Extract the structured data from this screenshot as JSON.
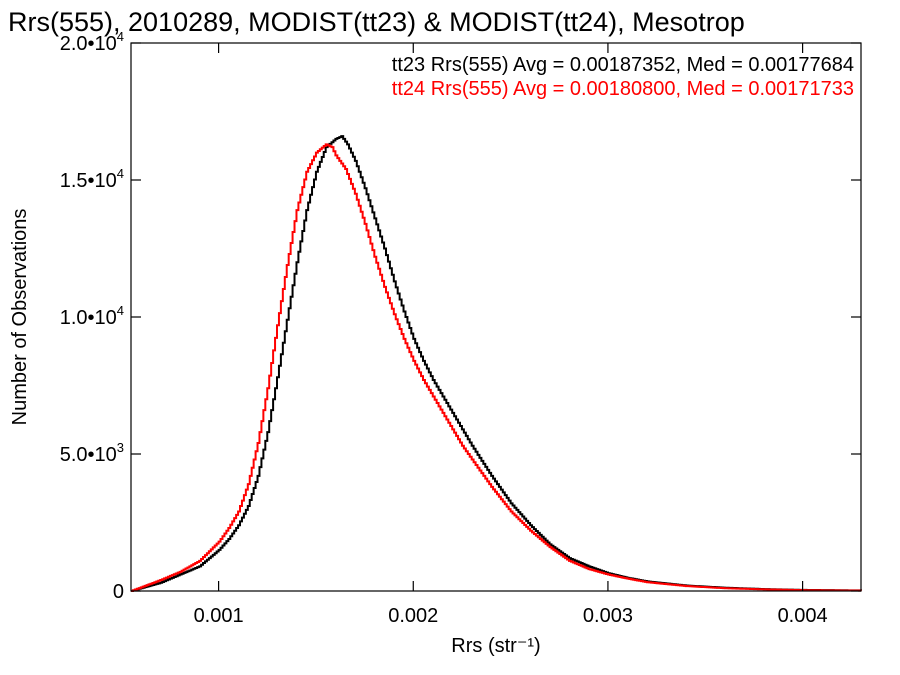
{
  "chart_data": {
    "type": "line",
    "title": "Rrs(555), 2010289, MODIST(tt23) & MODIST(tt24), Mesotrop",
    "xlabel": "Rrs (str⁻¹)",
    "ylabel": "Number of Observations",
    "xlim": [
      0.00055,
      0.0043
    ],
    "ylim": [
      0,
      20000
    ],
    "x_ticks": [
      {
        "value": 0.001,
        "label": "0.001"
      },
      {
        "value": 0.002,
        "label": "0.002"
      },
      {
        "value": 0.003,
        "label": "0.003"
      },
      {
        "value": 0.004,
        "label": "0.004"
      }
    ],
    "y_ticks": [
      {
        "value": 0,
        "mant": "0",
        "exp": ""
      },
      {
        "value": 5000,
        "mant": "5.0•10",
        "exp": "3"
      },
      {
        "value": 10000,
        "mant": "1.0•10",
        "exp": "4"
      },
      {
        "value": 15000,
        "mant": "1.5•10",
        "exp": "4"
      },
      {
        "value": 20000,
        "mant": "2.0•10",
        "exp": "4"
      }
    ],
    "grid": false,
    "legend_position": "top-right",
    "legend": [
      {
        "text": "tt23 Rrs(555) Avg = 0.00187352, Med = 0.00177684",
        "color": "#000000"
      },
      {
        "text": "tt24 Rrs(555) Avg = 0.00180800, Med = 0.00171733",
        "color": "#ff0000"
      }
    ],
    "series": [
      {
        "color": "#000000",
        "step": true,
        "x": [
          0.00055,
          0.0007,
          0.0008,
          0.0009,
          0.001,
          0.00105,
          0.0011,
          0.00115,
          0.0012,
          0.00125,
          0.0013,
          0.00135,
          0.0014,
          0.00145,
          0.0015,
          0.00155,
          0.0016,
          0.00163,
          0.00166,
          0.0017,
          0.00175,
          0.0018,
          0.00185,
          0.0019,
          0.00195,
          0.002,
          0.00205,
          0.0021,
          0.00215,
          0.0022,
          0.00225,
          0.0023,
          0.0024,
          0.0025,
          0.0026,
          0.0027,
          0.0028,
          0.0029,
          0.003,
          0.0031,
          0.0032,
          0.0034,
          0.0036,
          0.0038,
          0.004,
          0.0043
        ],
        "y": [
          0,
          300,
          600,
          900,
          1500,
          1900,
          2400,
          3100,
          4200,
          5800,
          7800,
          9900,
          12000,
          13900,
          15300,
          16200,
          16500,
          16600,
          16300,
          15700,
          14700,
          13600,
          12500,
          11300,
          10200,
          9200,
          8400,
          7700,
          7100,
          6500,
          5900,
          5300,
          4200,
          3200,
          2400,
          1700,
          1200,
          900,
          650,
          480,
          350,
          200,
          120,
          70,
          40,
          20
        ]
      },
      {
        "color": "#ff0000",
        "step": true,
        "x": [
          0.00055,
          0.0007,
          0.0008,
          0.0009,
          0.001,
          0.00105,
          0.0011,
          0.00115,
          0.0012,
          0.00125,
          0.0013,
          0.00135,
          0.0014,
          0.00145,
          0.0015,
          0.00155,
          0.00158,
          0.0016,
          0.00165,
          0.0017,
          0.00175,
          0.0018,
          0.00185,
          0.0019,
          0.00195,
          0.002,
          0.00205,
          0.0021,
          0.00215,
          0.0022,
          0.00225,
          0.0023,
          0.0024,
          0.0025,
          0.0026,
          0.0027,
          0.0028,
          0.0029,
          0.003,
          0.0031,
          0.0032,
          0.0034,
          0.0036,
          0.0038,
          0.004,
          0.0043
        ],
        "y": [
          0,
          400,
          700,
          1100,
          1800,
          2300,
          2900,
          3900,
          5400,
          7400,
          9700,
          11900,
          13900,
          15300,
          16000,
          16300,
          16200,
          15900,
          15400,
          14500,
          13400,
          12200,
          11100,
          10100,
          9200,
          8400,
          7700,
          7100,
          6500,
          5900,
          5300,
          4800,
          3800,
          2900,
          2200,
          1600,
          1100,
          800,
          600,
          450,
          320,
          180,
          100,
          60,
          30,
          15
        ]
      }
    ]
  }
}
